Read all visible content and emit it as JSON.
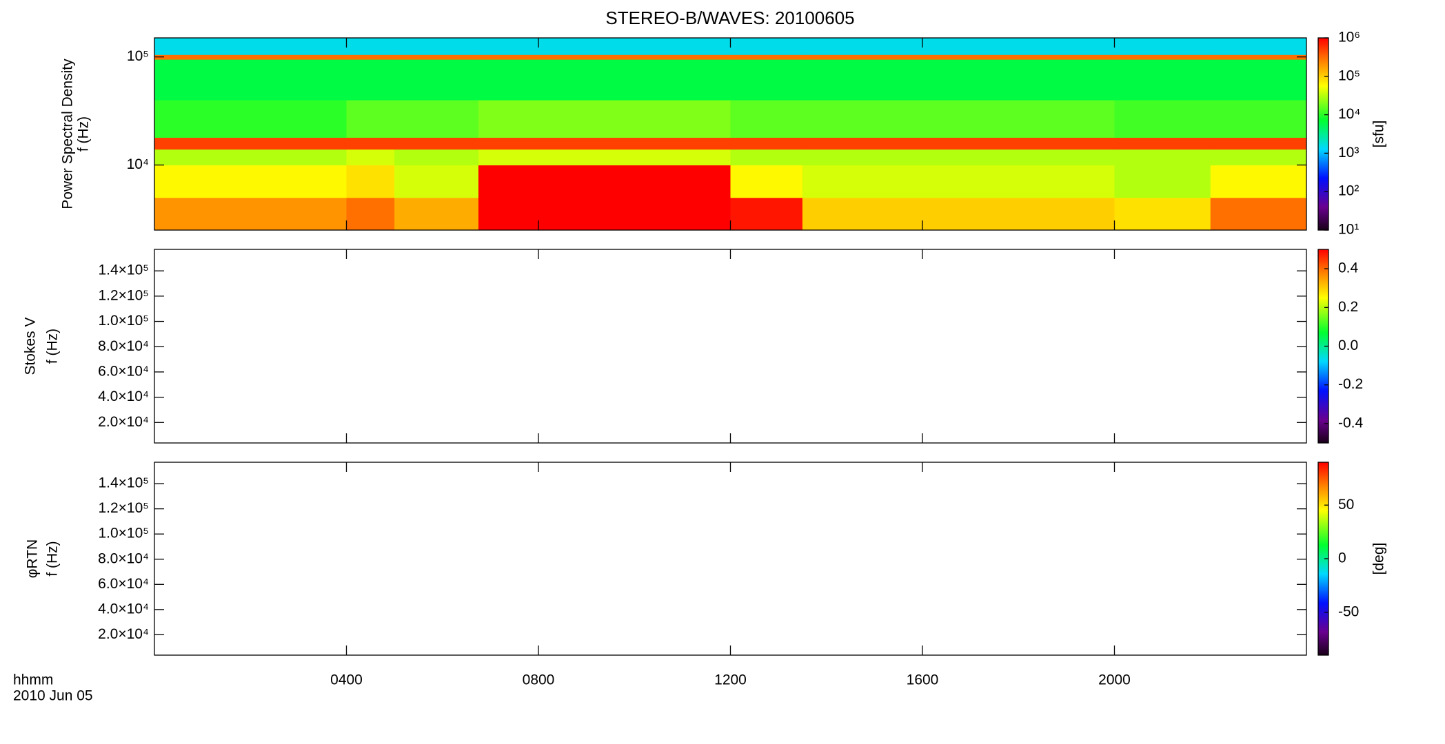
{
  "chart_data": [
    {
      "type": "heatmap",
      "title": "STEREO-B/WAVES: 20100605",
      "ylabel": [
        "Power Spectral Density",
        "f (Hz)"
      ],
      "yscale": "log",
      "ylim": [
        2500,
        150000
      ],
      "yticks": [
        {
          "value": 10000,
          "label": "10⁴"
        },
        {
          "value": 100000,
          "label": "10⁵"
        }
      ],
      "x_edges": [
        0,
        4,
        5,
        6.75,
        12,
        13.5,
        20,
        22,
        24
      ],
      "y_edges": [
        2500,
        5000,
        10000,
        14000,
        18000,
        40000,
        95000,
        105000,
        150000
      ],
      "z": [
        [
          200000,
          300000,
          150000,
          1000000,
          800000,
          100000,
          80000,
          300000
        ],
        [
          60000,
          80000,
          40000,
          1000000,
          60000,
          40000,
          30000,
          60000
        ],
        [
          30000,
          40000,
          30000,
          40000,
          30000,
          30000,
          30000,
          30000
        ],
        [
          500000,
          500000,
          500000,
          500000,
          500000,
          500000,
          500000,
          500000
        ],
        [
          10000,
          15000,
          15000,
          20000,
          15000,
          15000,
          12000,
          12000
        ],
        [
          6000,
          6000,
          6000,
          6000,
          6000,
          6000,
          6000,
          6000
        ],
        [
          300000,
          300000,
          300000,
          300000,
          300000,
          300000,
          300000,
          300000
        ],
        [
          1500,
          1500,
          1500,
          1500,
          1500,
          1500,
          1500,
          1500
        ]
      ],
      "colormap": "rainbow",
      "zscale": "log",
      "zlim": [
        10,
        1000000
      ],
      "zticks": [
        {
          "value": 10,
          "label": "10¹"
        },
        {
          "value": 100,
          "label": "10²"
        },
        {
          "value": 1000,
          "label": "10³"
        },
        {
          "value": 10000,
          "label": "10⁴"
        },
        {
          "value": 100000,
          "label": "10⁵"
        },
        {
          "value": 1000000,
          "label": "10⁶"
        }
      ],
      "zlabel": "[sfu]"
    },
    {
      "type": "heatmap",
      "ylabel": [
        "Stokes V",
        "f (Hz)"
      ],
      "yscale": "linear",
      "ylim": [
        3800,
        157000
      ],
      "yticks": [
        {
          "value": 20000,
          "label": "2.0×10⁴"
        },
        {
          "value": 40000,
          "label": "4.0×10⁴"
        },
        {
          "value": 60000,
          "label": "6.0×10⁴"
        },
        {
          "value": 80000,
          "label": "8.0×10⁴"
        },
        {
          "value": 100000,
          "label": "1.0×10⁵"
        },
        {
          "value": 120000,
          "label": "1.2×10⁵"
        },
        {
          "value": 140000,
          "label": "1.4×10⁵"
        }
      ],
      "colormap": "rainbow",
      "zscale": "linear",
      "zlim": [
        -0.5,
        0.5
      ],
      "zticks": [
        -0.4,
        -0.2,
        {
          "value": 0,
          "label": "0.0"
        },
        0.2,
        0.4
      ]
    },
    {
      "type": "heatmap",
      "ylabel": [
        "φRTN",
        "f (Hz)"
      ],
      "yscale": "linear",
      "ylim": [
        3800,
        157000
      ],
      "yticks": [
        {
          "value": 20000,
          "label": "2.0×10⁴"
        },
        {
          "value": 40000,
          "label": "4.0×10⁴"
        },
        {
          "value": 60000,
          "label": "6.0×10⁴"
        },
        {
          "value": 80000,
          "label": "8.0×10⁴"
        },
        {
          "value": 100000,
          "label": "1.0×10⁵"
        },
        {
          "value": 120000,
          "label": "1.2×10⁵"
        },
        {
          "value": 140000,
          "label": "1.4×10⁵"
        }
      ],
      "colormap": "rainbow",
      "zscale": "linear",
      "zlim": [
        -90,
        90
      ],
      "zticks": [
        -50,
        0,
        50
      ],
      "zlabel": "[deg]",
      "xlim": [
        0,
        24
      ],
      "xticks": [
        {
          "value": 4,
          "label": "0400"
        },
        {
          "value": 8,
          "label": "0800"
        },
        {
          "value": 12,
          "label": "1200"
        },
        {
          "value": 16,
          "label": "1600"
        },
        {
          "value": 20,
          "label": "2000"
        }
      ],
      "xlabel": [
        "hhmm",
        "2010 Jun 05"
      ]
    }
  ]
}
